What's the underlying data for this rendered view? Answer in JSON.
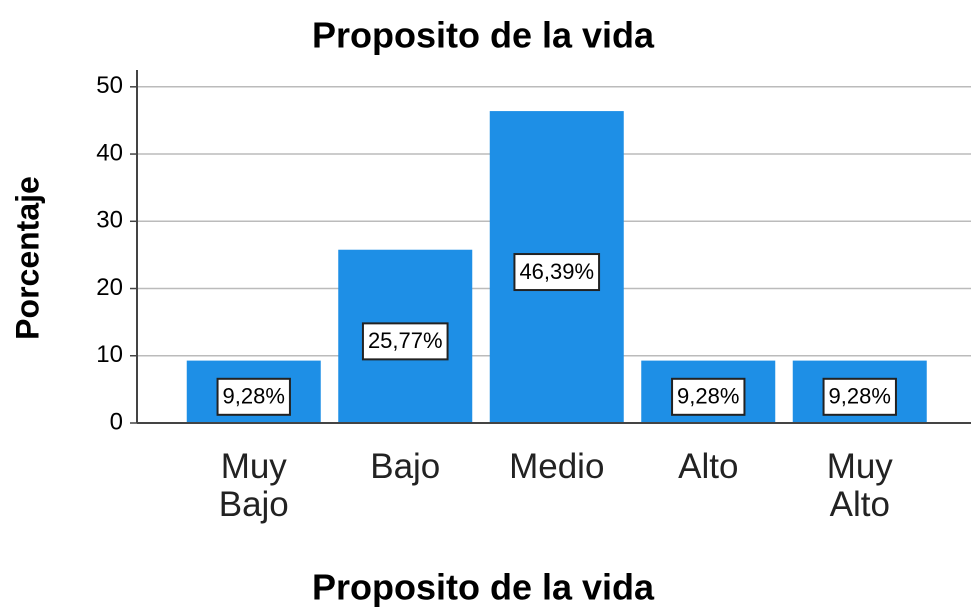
{
  "chart_data": {
    "type": "bar",
    "title": "Proposito de la vida",
    "x_label": "Proposito de la vida",
    "y_label": "Porcentaje",
    "categories": [
      "Muy Bajo",
      "Bajo",
      "Medio",
      "Alto",
      "Muy Alto"
    ],
    "values": [
      9.28,
      25.77,
      46.39,
      9.28,
      9.28
    ],
    "value_labels": [
      "9,28%",
      "25,77%",
      "46,39%",
      "9,28%",
      "9,28%"
    ],
    "color": "#1e8fe6",
    "ylim": [
      0,
      52.5
    ],
    "yticks": [
      0,
      10,
      20,
      30,
      40,
      50
    ],
    "grid": true
  }
}
